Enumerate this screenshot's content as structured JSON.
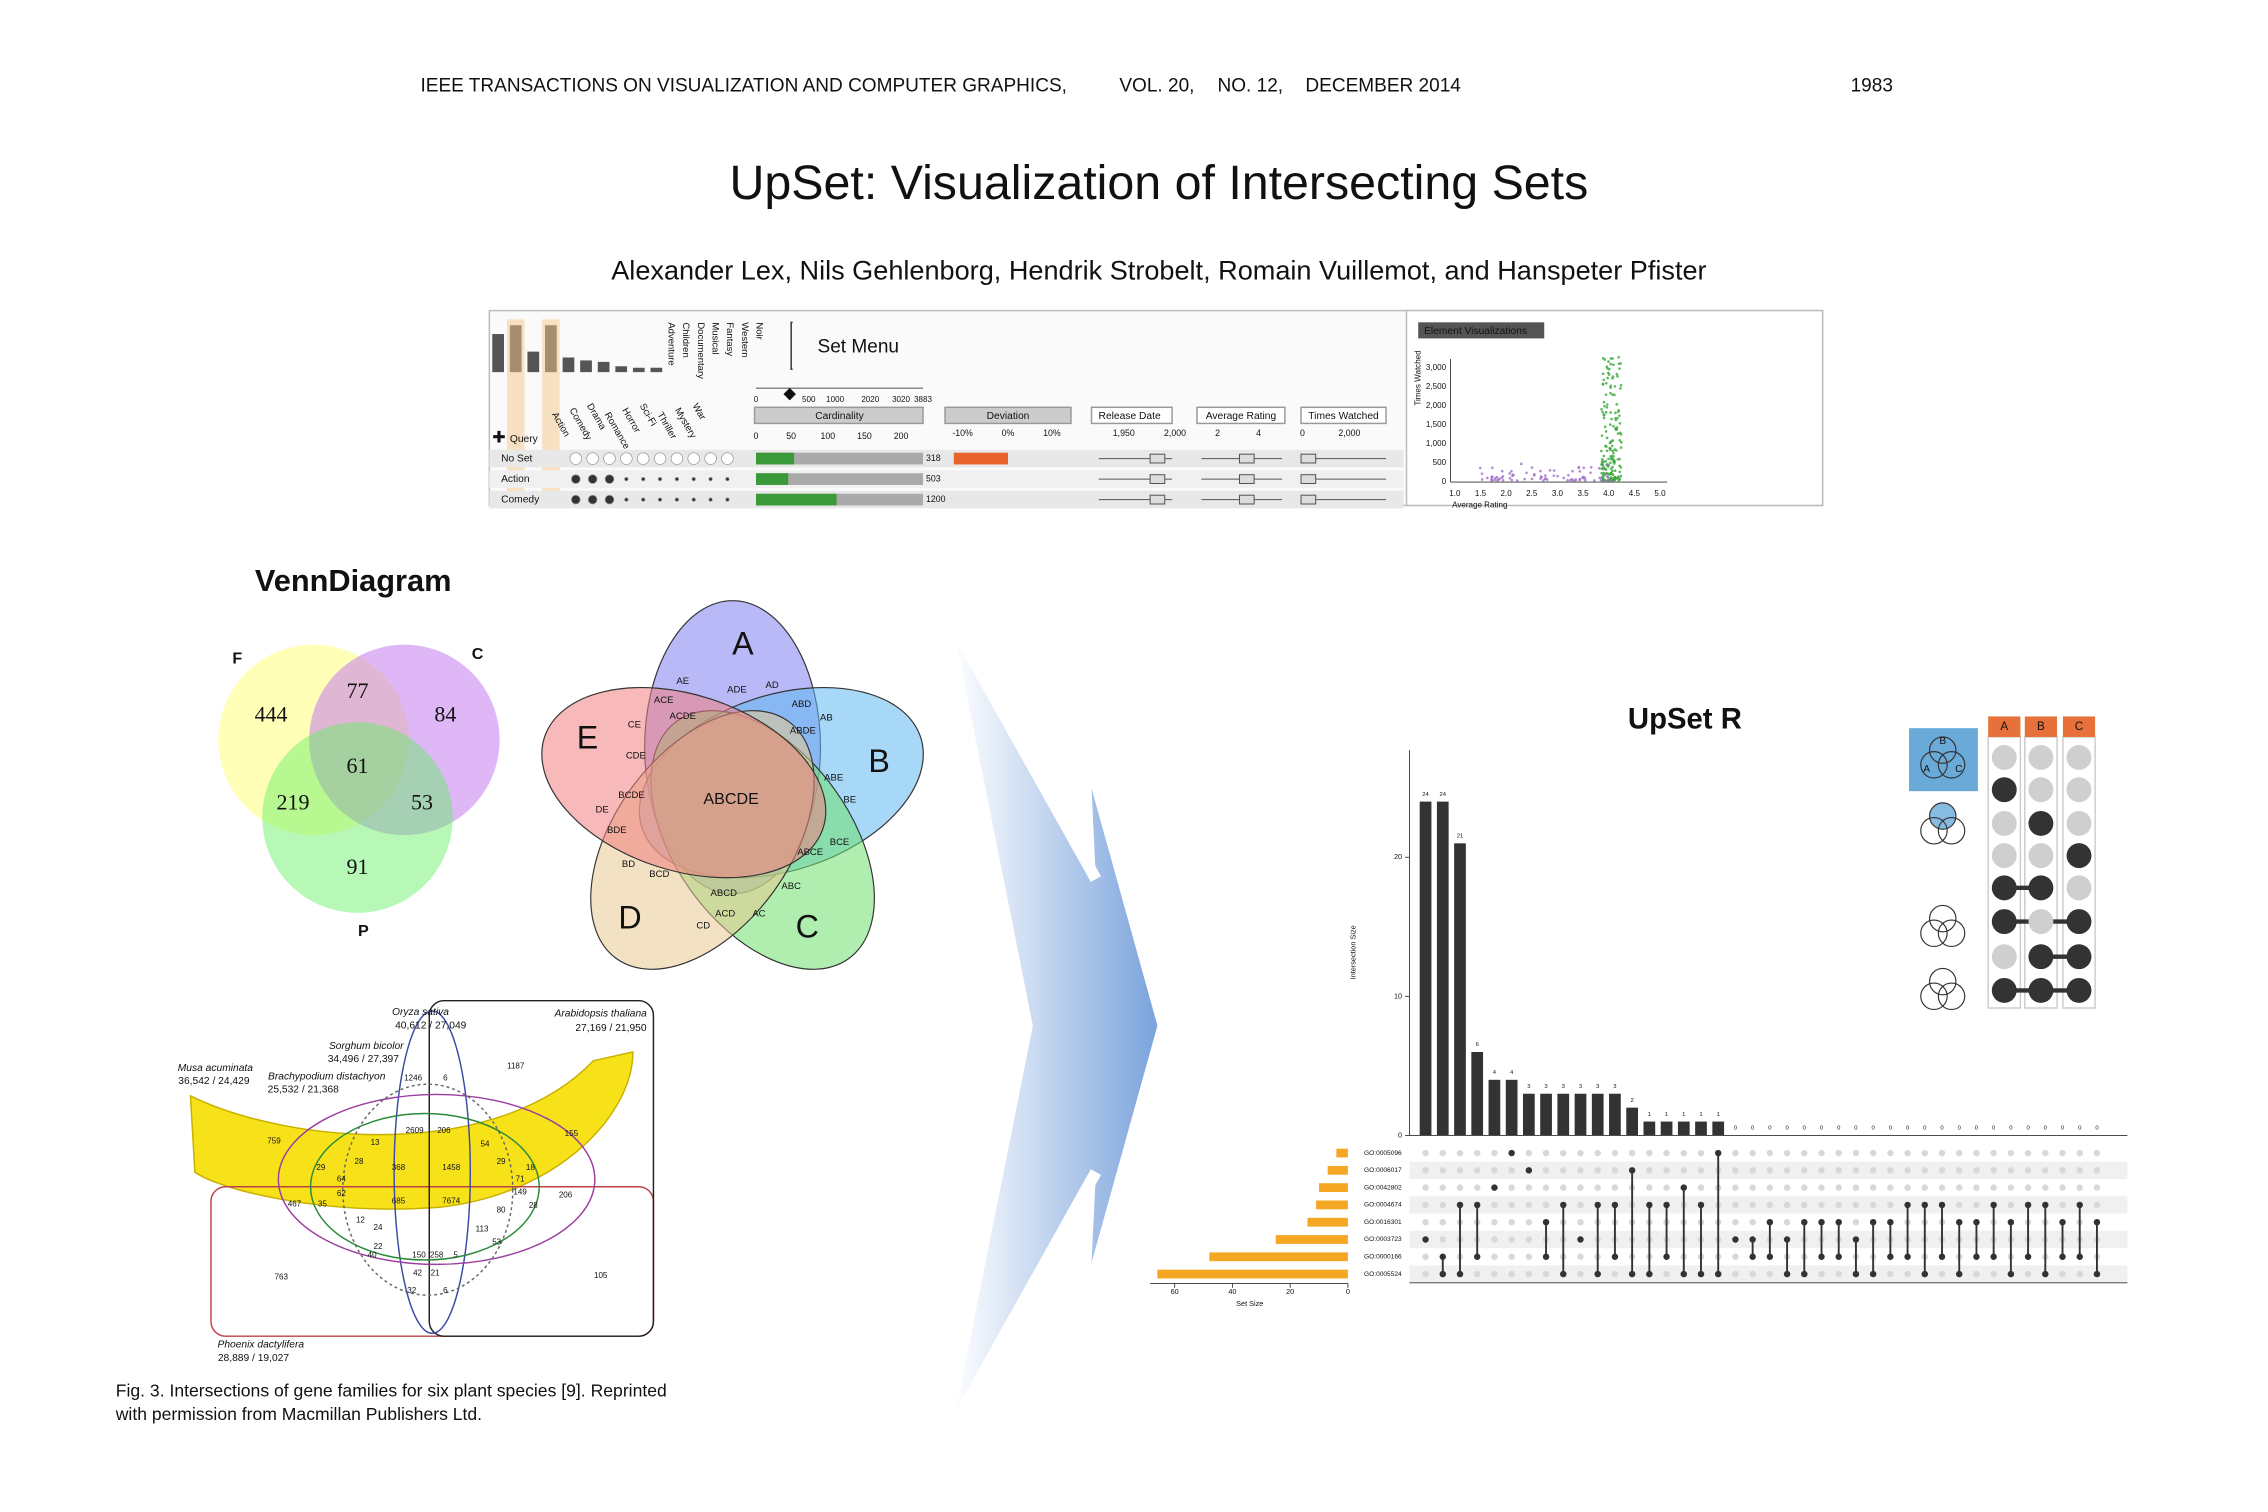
{
  "header": {
    "journal": "IEEE TRANSACTIONS ON VISUALIZATION AND COMPUTER GRAPHICS,",
    "volume": "VOL. 20,",
    "number": "NO. 12,",
    "date": "DECEMBER 2014",
    "page": "1983"
  },
  "title": "UpSet: Visualization of Intersecting Sets",
  "authors": "Alexander Lex, Nils Gehlenborg, Hendrik Strobelt, Romain Vuillemot, and Hanspeter Pfister",
  "upset_screenshot": {
    "set_menu": "Set Menu",
    "genres_top": [
      "Adventure",
      "Children",
      "Documentary",
      "Musical",
      "Fantasy",
      "Western",
      "Noir"
    ],
    "genres_bottom": [
      "Action",
      "Comedy",
      "Drama",
      "Romance",
      "Horror",
      "Sci-Fi",
      "Thriller",
      "Mystery",
      "War"
    ],
    "slider_ticks": [
      "0",
      "500",
      "1000",
      "2020",
      "3020",
      "3883"
    ],
    "columns": [
      "Cardinality",
      "Deviation",
      "Release Date",
      "Average Rating",
      "Times Watched"
    ],
    "cardinality_ticks": [
      "0",
      "50",
      "100",
      "150",
      "200"
    ],
    "deviation_ticks": [
      "-10%",
      "0%",
      "10%"
    ],
    "release_ticks": [
      "1,950",
      "2,000"
    ],
    "rating_ticks": [
      "2",
      "4"
    ],
    "watched_ticks": [
      "0",
      "2,000"
    ],
    "query": "Query",
    "rows": [
      {
        "name": "No Set",
        "count": "318"
      },
      {
        "name": "Action",
        "count": "503"
      },
      {
        "name": "Comedy",
        "count": "1200"
      }
    ],
    "panel_title": "Element Visualizations",
    "scatter_yticks": [
      "3,000",
      "2,500",
      "2,000",
      "1,500",
      "1,000",
      "500",
      "0"
    ],
    "scatter_xticks": [
      "1.0",
      "1.5",
      "2.0",
      "2.5",
      "3.0",
      "3.5",
      "4.0",
      "4.5",
      "5.0"
    ],
    "scatter_ylabel": "Times Watched",
    "scatter_xlabel": "Average Rating"
  },
  "venn_diagram": {
    "title": "VennDiagram",
    "three_set": {
      "sets": [
        "F",
        "C",
        "P"
      ],
      "regions": [
        444,
        77,
        84,
        61,
        219,
        53,
        91
      ]
    },
    "five_set": {
      "sets": [
        "A",
        "B",
        "C",
        "D",
        "E"
      ],
      "center": "ABCDE",
      "regions": [
        "AE",
        "ADE",
        "AD",
        "ACE",
        "ACDE",
        "ABD",
        "AB",
        "ABDE",
        "CE",
        "CDE",
        "ABE",
        "BE",
        "BCDE",
        "DE",
        "BDE",
        "ABCE",
        "BCE",
        "BD",
        "BCD",
        "ABCD",
        "ACD",
        "ABC",
        "AC",
        "CD"
      ]
    }
  },
  "banana": {
    "species": [
      {
        "name": "Oryza sativa",
        "counts": "40,612 / 27,049"
      },
      {
        "name": "Arabidopsis thaliana",
        "counts": "27,169 / 21,950"
      },
      {
        "name": "Sorghum bicolor",
        "counts": "34,496 / 27,397"
      },
      {
        "name": "Musa acuminata",
        "counts": "36,542 / 24,429"
      },
      {
        "name": "Brachypodium distachyon",
        "counts": "25,532 / 21,368"
      },
      {
        "name": "Phoenix dactylifera",
        "counts": "28,889 / 19,027"
      }
    ],
    "regions": [
      1187,
      1246,
      6,
      759,
      155,
      467,
      35,
      29,
      64,
      62,
      28,
      13,
      368,
      1458,
      685,
      7674,
      2609,
      206,
      54,
      29,
      18,
      71,
      149,
      206,
      28,
      80,
      113,
      24,
      12,
      22,
      150,
      258,
      42,
      21,
      32,
      6,
      763,
      105,
      40,
      5,
      53
    ]
  },
  "caption": [
    "Fig. 3. Intersections of gene families for six plant species [9]. Reprinted",
    "with permission from Macmillan Publishers Ltd."
  ],
  "upset_r": {
    "title": "UpSet R",
    "glyph_sets": [
      "A",
      "B",
      "C"
    ],
    "chart_data": {
      "type": "bar",
      "ylabel": "Intersection Size",
      "values": [
        24,
        24,
        21,
        6,
        4,
        4,
        3,
        3,
        3,
        3,
        3,
        3,
        2,
        1,
        1,
        1,
        1,
        1,
        0,
        0,
        0,
        0,
        0,
        0,
        0,
        0,
        0,
        0,
        0,
        0,
        0,
        0,
        0,
        0,
        0,
        0,
        0,
        0,
        0,
        0
      ],
      "color": "#333333",
      "ylim": [
        0,
        27.7
      ],
      "yticks": [
        0,
        10,
        20
      ],
      "sets": [
        "GO:0005096",
        "GO:0006017",
        "GO:0042802",
        "GO:0004674",
        "GO:0016301",
        "GO:0003723",
        "GO:0000166",
        "GO:0005524"
      ],
      "set_sizes": [
        4,
        7,
        10,
        11,
        14,
        25,
        48,
        66
      ],
      "set_color": "#f5a623",
      "set_xlabel": "Set Size",
      "set_xlim": [
        0,
        68.5
      ],
      "set_xticks": [
        60,
        40,
        20,
        0
      ],
      "membership": [
        [
          5
        ],
        [
          6,
          7
        ],
        [
          3,
          7
        ],
        [
          3,
          6
        ],
        [
          2
        ],
        [
          0
        ],
        [
          1
        ],
        [
          4,
          6
        ],
        [
          3,
          7
        ],
        [
          5
        ],
        [
          3,
          7
        ],
        [
          3,
          6
        ],
        [
          1,
          7
        ],
        [
          3,
          7
        ],
        [
          3,
          6
        ],
        [
          2,
          7
        ],
        [
          3,
          7
        ],
        [
          0,
          7
        ],
        [
          5
        ],
        [
          5,
          6
        ],
        [
          4,
          6
        ],
        [
          5,
          7
        ],
        [
          4,
          7
        ],
        [
          4,
          6
        ],
        [
          4,
          6
        ],
        [
          5,
          7
        ],
        [
          4,
          7
        ],
        [
          4,
          6
        ],
        [
          3,
          6
        ],
        [
          3,
          7
        ],
        [
          3,
          6
        ],
        [
          4,
          7
        ],
        [
          4,
          6
        ],
        [
          3,
          6
        ],
        [
          4,
          7
        ],
        [
          3,
          6
        ],
        [
          3,
          7
        ],
        [
          4,
          6
        ],
        [
          3,
          6
        ],
        [
          4,
          7
        ]
      ]
    }
  }
}
